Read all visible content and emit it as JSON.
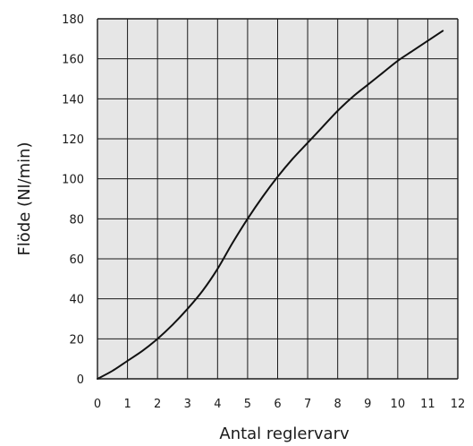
{
  "chart_data": {
    "type": "line",
    "title": "",
    "xlabel": "Antal reglervarv",
    "ylabel": "Flöde (Nl/min)",
    "xlim": [
      0,
      12
    ],
    "ylim": [
      0,
      180
    ],
    "x_ticks": [
      "0",
      "1",
      "2",
      "3",
      "4",
      "5",
      "6",
      "7",
      "8",
      "9",
      "10",
      "11",
      "12"
    ],
    "y_ticks": [
      "0",
      "20",
      "40",
      "60",
      "80",
      "100",
      "120",
      "140",
      "160",
      "180"
    ],
    "grid": true,
    "legend": "none",
    "colors": {
      "plot_background": "#e6e6e6",
      "grid": "#1a1a1a",
      "line": "#111111"
    },
    "series": [
      {
        "x": [
          0,
          0.5,
          1,
          1.5,
          2,
          2.5,
          3,
          3.5,
          4,
          4.5,
          5,
          5.5,
          6,
          6.5,
          7,
          7.5,
          8,
          8.5,
          9,
          9.5,
          10,
          10.5,
          11,
          11.5
        ],
        "values": [
          0,
          4,
          9,
          14,
          20,
          27,
          35,
          44,
          55,
          68,
          80,
          91,
          101,
          110,
          118,
          126,
          134,
          141,
          147,
          153,
          159,
          164,
          169,
          174
        ]
      }
    ]
  }
}
